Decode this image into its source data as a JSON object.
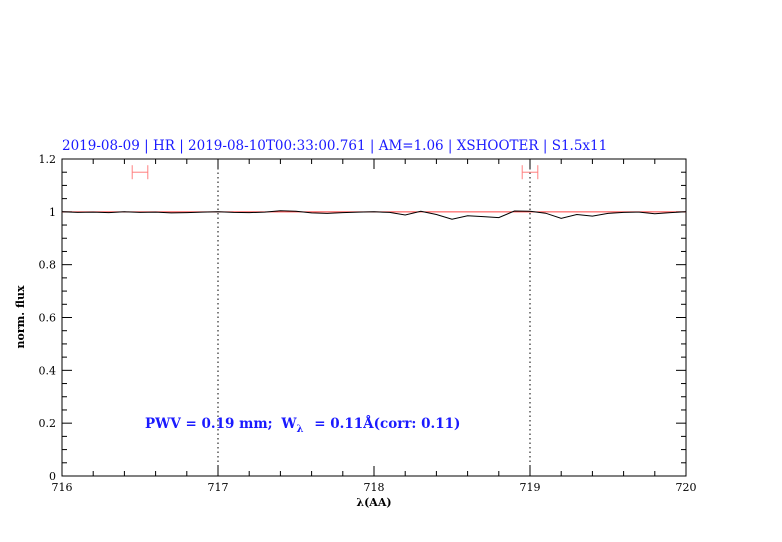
{
  "chart_data": {
    "type": "line",
    "title": "2019-08-09 | HR | 2019-08-10T00:33:00.761 | AM=1.06 | XSHOOTER | S1.5x11",
    "xlabel": "λ(AA)",
    "ylabel": "norm. flux",
    "xlim": [
      716,
      720
    ],
    "ylim": [
      0,
      1.2
    ],
    "xticks": [
      "716",
      "717",
      "718",
      "719",
      "720"
    ],
    "yticks": [
      "0",
      "0.2",
      "0.4",
      "0.6",
      "0.8",
      "1",
      "1.2"
    ],
    "grid": false,
    "reference_line": {
      "y": 1.0,
      "color": "#ff4040"
    },
    "vertical_markers": [
      717.0,
      719.0
    ],
    "error_bars": [
      {
        "x_min": 716.45,
        "x_max": 716.55,
        "y": 1.15,
        "color": "#ff8080"
      },
      {
        "x_min": 718.95,
        "x_max": 719.05,
        "y": 1.15,
        "color": "#ff8080"
      }
    ],
    "annotation": {
      "pwv": "PWV  =  0.19  mm;",
      "w_symbol": "W",
      "w_sub": "λ",
      "w_value": "=  0.11Å(corr:  0.11)"
    },
    "series": [
      {
        "color": "#000000",
        "x": [
          716.0,
          716.1,
          716.2,
          716.3,
          716.4,
          716.5,
          716.6,
          716.7,
          716.8,
          716.9,
          717.0,
          717.1,
          717.2,
          717.3,
          717.4,
          717.5,
          717.6,
          717.7,
          717.8,
          717.9,
          718.0,
          718.1,
          718.2,
          718.3,
          718.4,
          718.5,
          718.6,
          718.7,
          718.8,
          718.9,
          719.0,
          719.1,
          719.2,
          719.3,
          719.4,
          719.5,
          719.6,
          719.7,
          719.8,
          719.9,
          720.0
        ],
        "y": [
          1.0,
          0.998,
          0.999,
          0.997,
          1.0,
          0.998,
          0.999,
          0.996,
          0.997,
          0.999,
          1.0,
          0.998,
          0.997,
          0.999,
          1.004,
          1.002,
          0.996,
          0.994,
          0.997,
          0.999,
          1.0,
          0.998,
          0.988,
          1.002,
          0.99,
          0.972,
          0.985,
          0.982,
          0.978,
          1.003,
          1.002,
          0.995,
          0.975,
          0.99,
          0.984,
          0.994,
          0.998,
          0.999,
          0.993,
          0.997,
          1.0
        ]
      }
    ]
  }
}
